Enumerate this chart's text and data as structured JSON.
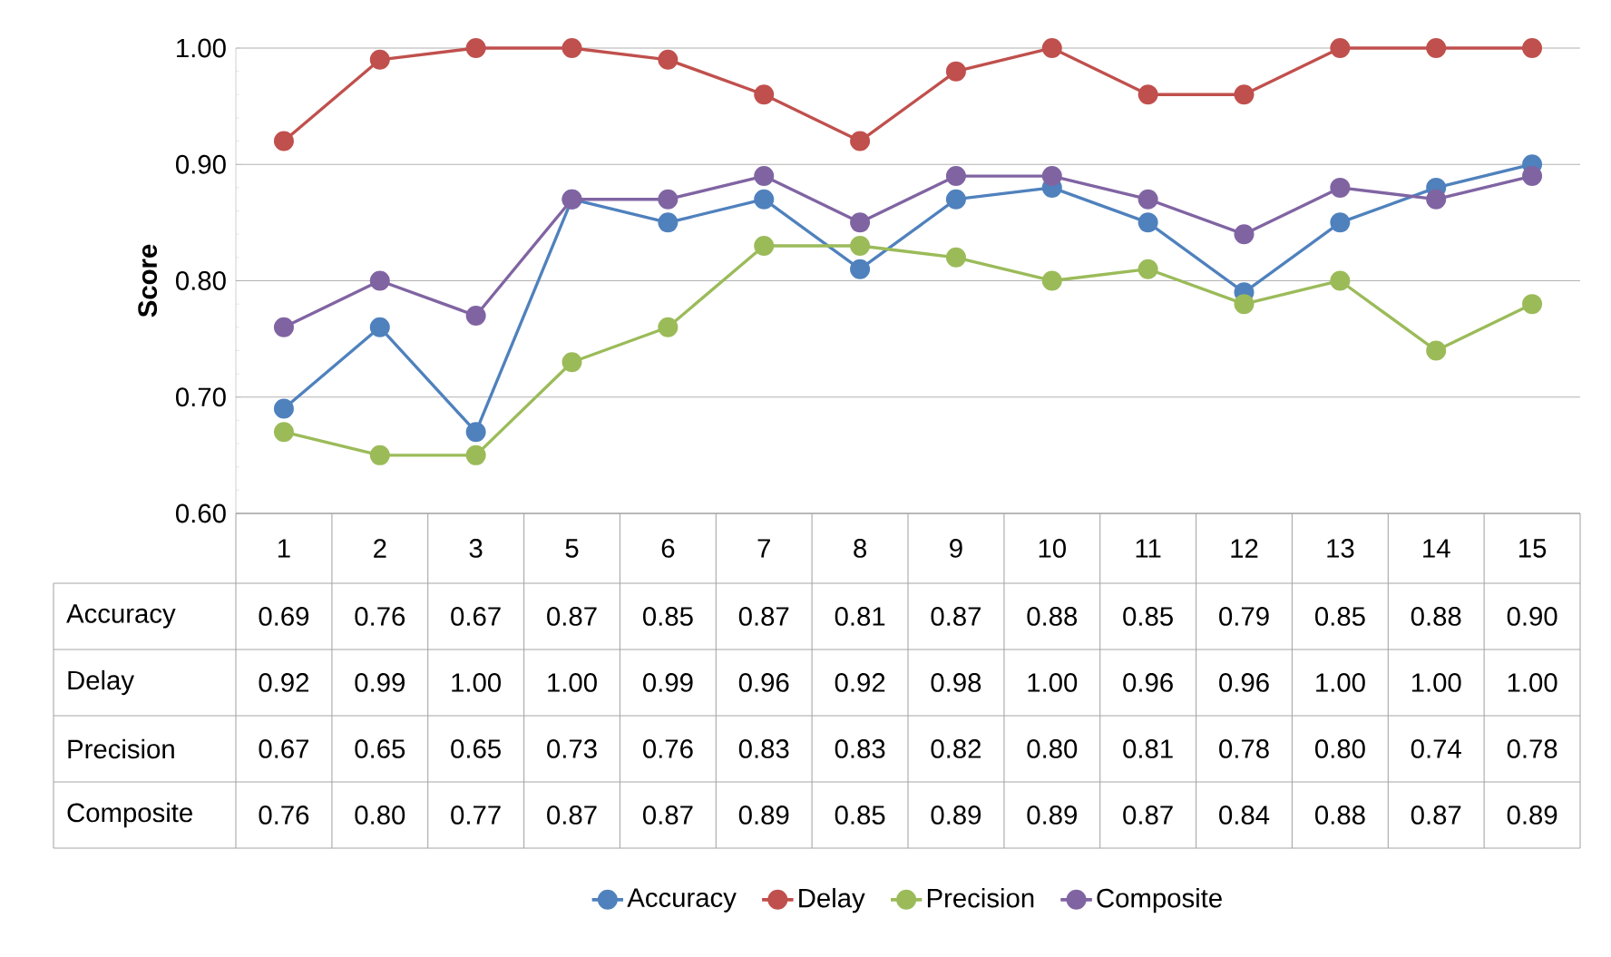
{
  "chart_data": {
    "type": "line",
    "ylabel": "Score",
    "categories": [
      "1",
      "2",
      "3",
      "5",
      "6",
      "7",
      "8",
      "9",
      "10",
      "11",
      "12",
      "13",
      "14",
      "15"
    ],
    "series": [
      {
        "name": "Accuracy",
        "color": "#4f81bd",
        "values": [
          0.69,
          0.76,
          0.67,
          0.87,
          0.85,
          0.87,
          0.81,
          0.87,
          0.88,
          0.85,
          0.79,
          0.85,
          0.88,
          0.9
        ],
        "value_labels": [
          "0.69",
          "0.76",
          "0.67",
          "0.87",
          "0.85",
          "0.87",
          "0.81",
          "0.87",
          "0.88",
          "0.85",
          "0.79",
          "0.85",
          "0.88",
          "0.90"
        ]
      },
      {
        "name": "Delay",
        "color": "#c0504d",
        "values": [
          0.92,
          0.99,
          1.0,
          1.0,
          0.99,
          0.96,
          0.92,
          0.98,
          1.0,
          0.96,
          0.96,
          1.0,
          1.0,
          1.0
        ],
        "value_labels": [
          "0.92",
          "0.99",
          "1.00",
          "1.00",
          "0.99",
          "0.96",
          "0.92",
          "0.98",
          "1.00",
          "0.96",
          "0.96",
          "1.00",
          "1.00",
          "1.00"
        ]
      },
      {
        "name": "Precision",
        "color": "#9bbb59",
        "values": [
          0.67,
          0.65,
          0.65,
          0.73,
          0.76,
          0.83,
          0.83,
          0.82,
          0.8,
          0.81,
          0.78,
          0.8,
          0.74,
          0.78
        ],
        "value_labels": [
          "0.67",
          "0.65",
          "0.65",
          "0.73",
          "0.76",
          "0.83",
          "0.83",
          "0.82",
          "0.80",
          "0.81",
          "0.78",
          "0.80",
          "0.74",
          "0.78"
        ]
      },
      {
        "name": "Composite",
        "color": "#8064a2",
        "values": [
          0.76,
          0.8,
          0.77,
          0.87,
          0.87,
          0.89,
          0.85,
          0.89,
          0.89,
          0.87,
          0.84,
          0.88,
          0.87,
          0.89
        ],
        "value_labels": [
          "0.76",
          "0.80",
          "0.77",
          "0.87",
          "0.87",
          "0.89",
          "0.85",
          "0.89",
          "0.89",
          "0.87",
          "0.84",
          "0.88",
          "0.87",
          "0.89"
        ]
      }
    ],
    "ylim": [
      0.6,
      1.0
    ],
    "yticks": [
      {
        "value": 0.6,
        "label": "0.60"
      },
      {
        "value": 0.7,
        "label": "0.70"
      },
      {
        "value": 0.8,
        "label": "0.80"
      },
      {
        "value": 0.9,
        "label": "0.90"
      },
      {
        "value": 1.0,
        "label": "1.00"
      }
    ],
    "grid": "y",
    "legend": "bottom",
    "marker": "circle"
  }
}
